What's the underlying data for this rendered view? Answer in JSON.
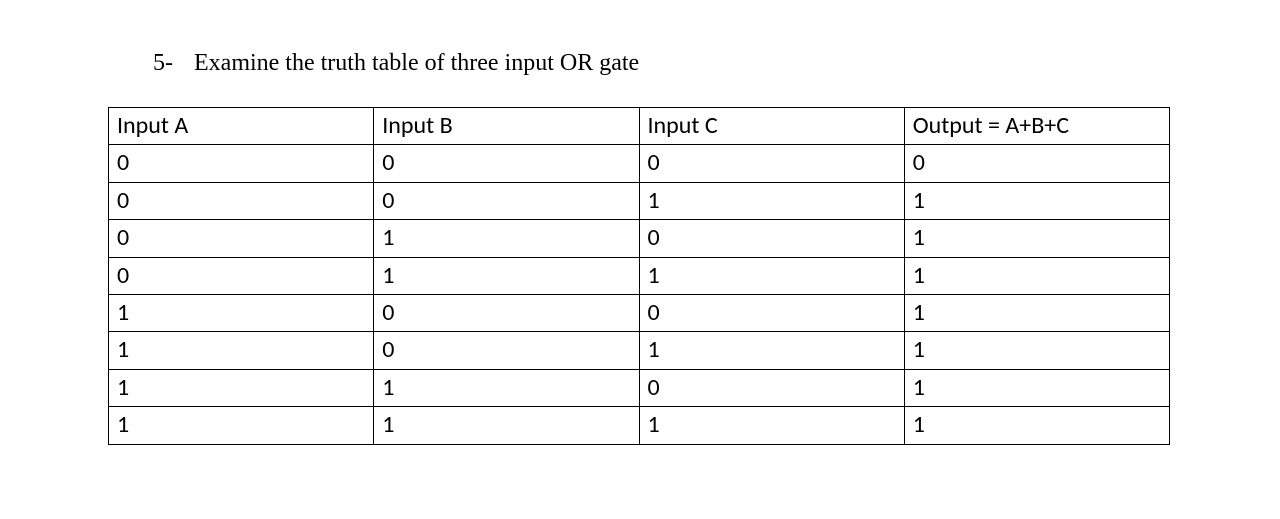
{
  "heading": {
    "list_number": "5-",
    "text": "Examine the truth table of three input OR gate"
  },
  "table": {
    "columns": [
      "Input A",
      "Input B",
      "Input C",
      "Output = A+B+C"
    ],
    "rows": [
      [
        "0",
        "0",
        "0",
        "0"
      ],
      [
        "0",
        "0",
        "1",
        "1"
      ],
      [
        "0",
        "1",
        "0",
        "1"
      ],
      [
        "0",
        "1",
        "1",
        "1"
      ],
      [
        "1",
        "0",
        "0",
        "1"
      ],
      [
        "1",
        "0",
        "1",
        "1"
      ],
      [
        "1",
        "1",
        "0",
        "1"
      ],
      [
        "1",
        "1",
        "1",
        "1"
      ]
    ],
    "border_color": "#000000",
    "background_color": "#ffffff",
    "header_fontsize": 24,
    "cell_fontsize": 24,
    "font_family": "Calibri, Arial, sans-serif"
  }
}
